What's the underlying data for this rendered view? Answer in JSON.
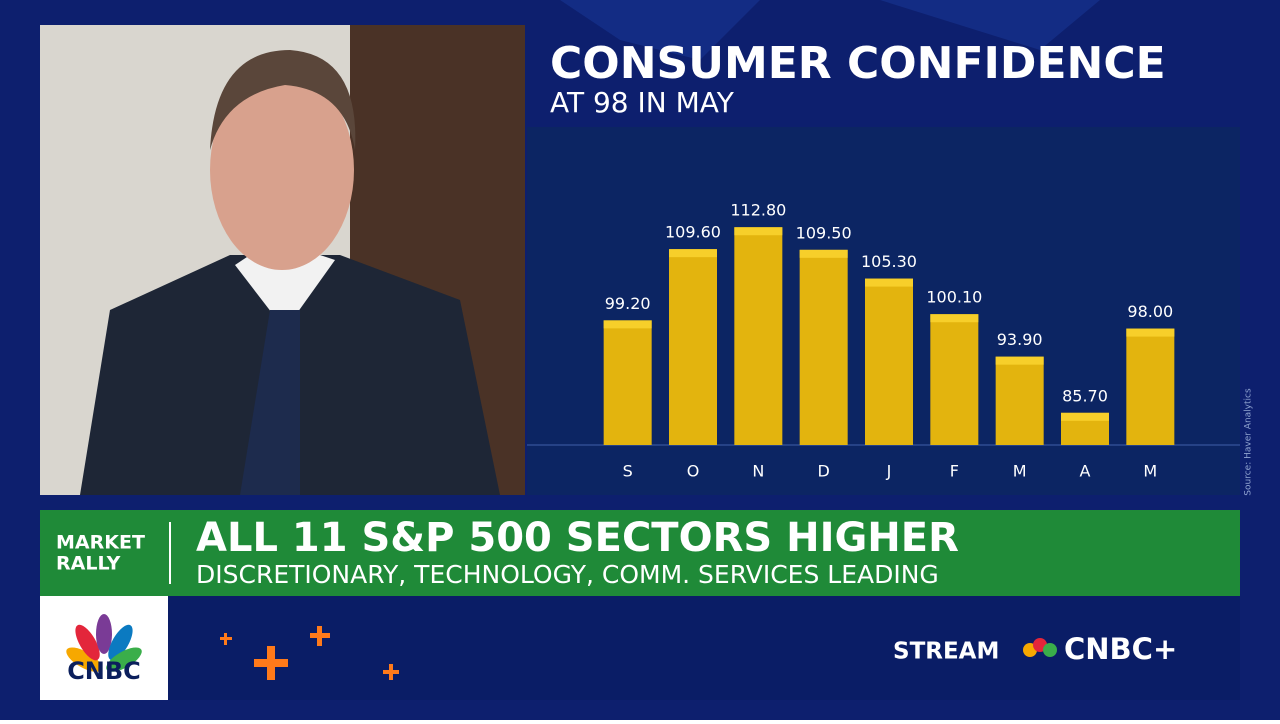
{
  "chart_data": {
    "type": "bar",
    "title": "CONSUMER CONFIDENCE",
    "subtitle": "AT 98 IN MAY",
    "categories": [
      "S",
      "O",
      "N",
      "D",
      "J",
      "F",
      "M",
      "A",
      "M"
    ],
    "values": [
      99.2,
      109.6,
      112.8,
      109.5,
      105.3,
      100.1,
      93.9,
      85.7,
      98.0
    ],
    "value_labels": [
      "99.20",
      "109.60",
      "112.80",
      "109.50",
      "105.30",
      "100.10",
      "93.90",
      "85.70",
      "98.00"
    ],
    "color": "#e3b40e",
    "ylim": [
      81,
      127
    ],
    "source": "Source: Haver Analytics"
  },
  "banner": {
    "tag": [
      "MARKET",
      "RALLY"
    ],
    "headline": "ALL 11 S&P 500 SECTORS HIGHER",
    "subline": "DISCRETIONARY, TECHNOLOGY, COMM. SERVICES LEADING"
  },
  "footer": {
    "logo": "CNBC",
    "stream": "STREAM",
    "brand": "CNBC+"
  }
}
